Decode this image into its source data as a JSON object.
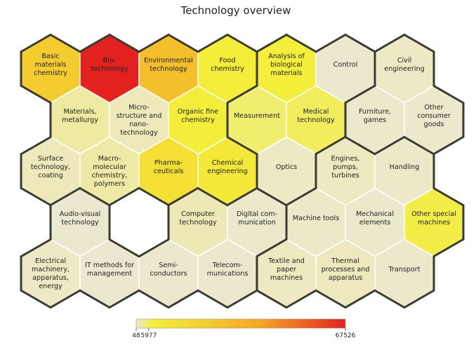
{
  "chart_data": {
    "type": "heatmap",
    "layout": "hexagonal",
    "title": "Technology overview",
    "colorscale": {
      "min": 48,
      "max": 67526,
      "ticks": [
        "48",
        "5977",
        "67526"
      ],
      "colors": [
        "#ece8d2",
        "#f4ef3a",
        "#f5a524",
        "#e3221f"
      ]
    },
    "cells": [
      {
        "row": 0,
        "col": 0,
        "label": "Basic materials chemistry",
        "value": 22000
      },
      {
        "row": 0,
        "col": 1,
        "label": "Bio-technology",
        "value": 67526
      },
      {
        "row": 0,
        "col": 2,
        "label": "Environmental technology",
        "value": 28000
      },
      {
        "row": 0,
        "col": 3,
        "label": "Food chemistry",
        "value": 6600
      },
      {
        "row": 0,
        "col": 4,
        "label": "Analysis of biological materials",
        "value": 5400
      },
      {
        "row": 0,
        "col": 5,
        "label": "Control",
        "value": 150
      },
      {
        "row": 0,
        "col": 6,
        "label": "Civil engineering",
        "value": 500
      },
      {
        "row": 1,
        "col": 0,
        "label": "Materials, metallurgy",
        "value": 1800
      },
      {
        "row": 1,
        "col": 1,
        "label": "Micro-structure and nano-technology",
        "value": 900
      },
      {
        "row": 1,
        "col": 2,
        "label": "Organic fine chemistry",
        "value": 6300
      },
      {
        "row": 1,
        "col": 3,
        "label": "Measurement",
        "value": 3600
      },
      {
        "row": 1,
        "col": 4,
        "label": "Medical technology",
        "value": 4200
      },
      {
        "row": 1,
        "col": 5,
        "label": "Furniture, games",
        "value": 300
      },
      {
        "row": 1,
        "col": 6,
        "label": "Other consumer goods",
        "value": 250
      },
      {
        "row": 2,
        "col": 0,
        "label": "Surface technology, coating",
        "value": 900
      },
      {
        "row": 2,
        "col": 1,
        "label": "Macro-molecular chemistry, polymers",
        "value": 1600
      },
      {
        "row": 2,
        "col": 2,
        "label": "Pharma-ceuticals",
        "value": 13000
      },
      {
        "row": 2,
        "col": 3,
        "label": "Chemical engineering",
        "value": 9000
      },
      {
        "row": 2,
        "col": 4,
        "label": "Optics",
        "value": 500
      },
      {
        "row": 2,
        "col": 5,
        "label": "Engines, pumps, turbines",
        "value": 700
      },
      {
        "row": 2,
        "col": 6,
        "label": "Handling",
        "value": 400
      },
      {
        "row": 3,
        "col": 0,
        "label": "Audio-visual technology",
        "value": 120
      },
      {
        "row": 3,
        "col": 1,
        "label": "",
        "value": null
      },
      {
        "row": 3,
        "col": 2,
        "label": "Computer technology",
        "value": 1000
      },
      {
        "row": 3,
        "col": 3,
        "label": "Digital com-munication",
        "value": 250
      },
      {
        "row": 3,
        "col": 4,
        "label": "Machine tools",
        "value": 400
      },
      {
        "row": 3,
        "col": 5,
        "label": "Mechanical elements",
        "value": 300
      },
      {
        "row": 3,
        "col": 6,
        "label": "Other special machines",
        "value": 5000
      },
      {
        "row": 4,
        "col": 0,
        "label": "Electrical machinery, apparatus, energy",
        "value": 550
      },
      {
        "row": 4,
        "col": 1,
        "label": "IT methods for management",
        "value": 160
      },
      {
        "row": 4,
        "col": 2,
        "label": "Semi-conductors",
        "value": 220
      },
      {
        "row": 4,
        "col": 3,
        "label": "Telecom-munications",
        "value": 180
      },
      {
        "row": 4,
        "col": 4,
        "label": "Textile and paper machines",
        "value": 700
      },
      {
        "row": 4,
        "col": 5,
        "label": "Thermal processes and apparatus",
        "value": 800
      },
      {
        "row": 4,
        "col": 6,
        "label": "Transport",
        "value": 250
      }
    ]
  }
}
